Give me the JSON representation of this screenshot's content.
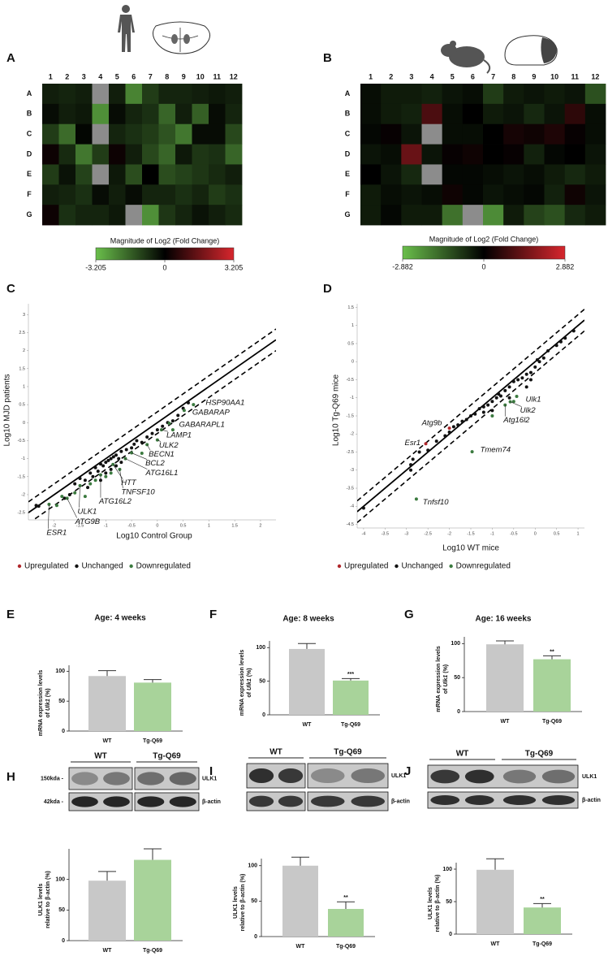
{
  "chart_data": [
    {
      "type": "heatmap",
      "panel": "A",
      "columns": [
        "1",
        "2",
        "3",
        "4",
        "5",
        "6",
        "7",
        "8",
        "9",
        "10",
        "11",
        "12"
      ],
      "rows": [
        "A",
        "B",
        "C",
        "D",
        "E",
        "F",
        "G"
      ],
      "values": [
        [
          -0.5,
          -0.6,
          -0.5,
          null,
          -0.5,
          -2.2,
          -1.0,
          -0.6,
          -0.6,
          -0.5,
          -0.4,
          -0.5
        ],
        [
          -0.2,
          -0.5,
          -0.4,
          -2.4,
          -0.2,
          -0.6,
          -0.8,
          -1.7,
          -0.5,
          -1.6,
          -0.2,
          -0.6
        ],
        [
          -1.0,
          -1.8,
          -0.1,
          null,
          -0.6,
          -0.8,
          -1.0,
          -1.4,
          -2.0,
          -0.2,
          -0.2,
          -1.2
        ],
        [
          0.2,
          -0.7,
          -2.0,
          -1.0,
          0.2,
          -0.5,
          -1.2,
          -1.7,
          -0.4,
          -0.9,
          -0.8,
          -1.7
        ],
        [
          -1.0,
          -0.3,
          -1.1,
          null,
          -0.4,
          -1.3,
          0.0,
          -1.3,
          -1.1,
          -0.9,
          -0.7,
          -0.5
        ],
        [
          -0.5,
          -0.6,
          -0.8,
          -0.2,
          -0.5,
          -0.2,
          -0.6,
          -0.6,
          -0.8,
          -0.6,
          -1.0,
          -0.8
        ],
        [
          0.2,
          -0.8,
          -0.6,
          -0.6,
          -0.4,
          null,
          -2.4,
          -0.9,
          -0.6,
          -0.3,
          -0.5,
          -0.7
        ]
      ],
      "colorbar_title": "Magnitude of Log2 (Fold Change)",
      "clim": [
        -3.205,
        3.205
      ],
      "cticks": [
        -3.205,
        0,
        3.205
      ],
      "colors": [
        "#6abf4b",
        "#000000",
        "#d7262d"
      ],
      "missing_color": "#8c8c8c"
    },
    {
      "type": "heatmap",
      "panel": "B",
      "columns": [
        "1",
        "2",
        "3",
        "4",
        "5",
        "6",
        "7",
        "8",
        "9",
        "10",
        "11",
        "12"
      ],
      "rows": [
        "A",
        "B",
        "C",
        "D",
        "E",
        "F",
        "G"
      ],
      "values": [
        [
          -0.2,
          -0.4,
          -0.4,
          -0.5,
          -0.3,
          -0.2,
          -0.9,
          -0.4,
          -0.3,
          -0.4,
          -0.3,
          -1.2
        ],
        [
          -0.2,
          -0.4,
          -0.5,
          1.0,
          -0.2,
          0.0,
          -0.4,
          -0.3,
          -0.6,
          -0.3,
          0.6,
          -0.2
        ],
        [
          -0.1,
          0.1,
          -0.3,
          null,
          -0.2,
          -0.2,
          0.0,
          0.3,
          0.2,
          0.4,
          0.1,
          -0.2
        ],
        [
          -0.3,
          -0.2,
          1.4,
          -0.3,
          0.1,
          0.2,
          0.0,
          0.1,
          -0.5,
          -0.1,
          0.0,
          -0.3
        ],
        [
          0.0,
          -0.3,
          -0.6,
          null,
          -0.1,
          -0.1,
          -0.2,
          -0.3,
          -0.2,
          -0.4,
          -0.6,
          -0.4
        ],
        [
          -0.4,
          -0.2,
          -0.3,
          -0.2,
          0.2,
          -0.1,
          -0.3,
          -0.2,
          -0.1,
          -0.5,
          0.2,
          -0.3
        ],
        [
          -0.4,
          -0.1,
          -0.4,
          -0.4,
          -1.7,
          null,
          -2.1,
          -0.4,
          -1.0,
          -1.2,
          -0.6,
          -0.4
        ]
      ],
      "colorbar_title": "Magnitude of Log2 (Fold Change)",
      "clim": [
        -2.882,
        2.882
      ],
      "cticks": [
        -2.882,
        0,
        2.882
      ],
      "colors": [
        "#6abf4b",
        "#000000",
        "#d7262d"
      ],
      "missing_color": "#8c8c8c"
    },
    {
      "type": "scatter",
      "panel": "C",
      "xlabel": "Log10 Control Group",
      "ylabel": "Log10  MJD patients",
      "xlim": [
        -2.5,
        2.3
      ],
      "ylim": [
        -2.7,
        3.3
      ],
      "xticks": [
        -2,
        -1.5,
        -1,
        -0.5,
        0,
        0.5,
        1,
        1.5,
        2
      ],
      "yticks": [
        -2.5,
        -2,
        -1.5,
        -1,
        -0.5,
        0,
        0.5,
        1,
        1.5,
        2,
        2.5,
        3
      ],
      "reference_lines": [
        {
          "offset": 0,
          "dash": false
        },
        {
          "offset": 0.3,
          "dash": true
        },
        {
          "offset": -0.3,
          "dash": true
        }
      ],
      "legend": "bottom",
      "series": [
        {
          "name": "Upregulated",
          "color": "#b0282c",
          "x": [],
          "y": [],
          "point_labels": []
        },
        {
          "name": "Unchanged",
          "color": "#111111",
          "x": [
            -2.35,
            -2.3,
            -1.6,
            -1.5,
            -1.3,
            -1.2,
            -1.1,
            -1.05,
            -1.0,
            -0.95,
            -0.9,
            -0.85,
            -0.8,
            -0.75,
            -0.7,
            -0.6,
            -0.5,
            -0.45,
            -0.4,
            -0.3,
            -0.2,
            -0.1,
            0.0,
            0.1,
            0.2,
            0.3,
            0.4,
            0.5,
            0.6,
            -1.25,
            -1.15,
            -1.0,
            -0.9,
            -0.8,
            -1.4,
            -1.35,
            -1.7,
            -1.8,
            -1.1,
            -0.7
          ],
          "y": [
            -2.3,
            -2.32,
            -1.7,
            -1.55,
            -1.4,
            -1.25,
            -1.15,
            -1.2,
            -1.1,
            -1.05,
            -1.0,
            -0.95,
            -0.9,
            -1.0,
            -0.8,
            -0.75,
            -0.7,
            -0.6,
            -0.5,
            -0.55,
            -0.4,
            -0.3,
            -0.2,
            -0.1,
            0.0,
            0.05,
            0.2,
            0.4,
            0.55,
            -1.5,
            -1.35,
            -1.4,
            -1.3,
            -1.2,
            -1.6,
            -1.8,
            -2.0,
            -2.1,
            -1.6,
            -1.1
          ],
          "point_labels": []
        },
        {
          "name": "Downregulated",
          "color": "#3b7a3f",
          "x": [
            0.7,
            0.52,
            0.23,
            0.08,
            0,
            -0.2,
            -0.5,
            -0.62,
            -0.86,
            -0.73,
            -1.1,
            -1.5,
            -1.75,
            -2.1,
            -1.2,
            -1.0,
            -0.9,
            -1.3,
            -1.6,
            -1.4,
            -1.95,
            -1.85,
            0.3,
            -0.3
          ],
          "y": [
            0.5,
            0.34,
            -0.02,
            -0.2,
            -0.48,
            -0.61,
            -0.84,
            -1.0,
            -1.16,
            -1.3,
            -1.45,
            -1.75,
            -2.1,
            -2.27,
            -1.6,
            -1.5,
            -1.4,
            -1.7,
            -1.95,
            -2.05,
            -2.3,
            -2.05,
            -0.2,
            -0.85
          ],
          "point_labels": [
            "HSP90AA1",
            "GABARAP",
            "GABARAPL1",
            "LAMP1",
            "ULK2",
            "BECN1",
            "BCL2",
            "ATG16L1",
            "HTT",
            "TNFSF10",
            "ATG16L2",
            "ULK1",
            "ATG9B",
            "ESR1",
            null,
            null,
            null,
            null,
            null,
            null,
            null,
            null,
            null,
            null
          ]
        }
      ]
    },
    {
      "type": "scatter",
      "panel": "D",
      "xlabel": "Log10 WT mice",
      "ylabel": "Log10 Tg-Q69 mice",
      "xlim": [
        -4.15,
        1.15
      ],
      "ylim": [
        -4.6,
        1.6
      ],
      "xticks": [
        -4,
        -3.5,
        -3,
        -2.5,
        -2,
        -1.5,
        -1,
        -0.5,
        0,
        0.5,
        1
      ],
      "yticks": [
        -4.5,
        -4,
        -3.5,
        -3,
        -2.5,
        -2,
        -1.5,
        -1,
        -0.5,
        0,
        0.5,
        1,
        1.5
      ],
      "reference_lines": [
        {
          "offset": 0,
          "dash": false
        },
        {
          "offset": 0.3,
          "dash": true
        },
        {
          "offset": -0.3,
          "dash": true
        }
      ],
      "legend": "bottom",
      "series": [
        {
          "name": "Upregulated",
          "color": "#b0282c",
          "x": [
            -2.0,
            -2.55
          ],
          "y": [
            -1.84,
            -2.27
          ],
          "point_labels": [
            "Atg9b",
            "Esr1"
          ]
        },
        {
          "name": "Unchanged",
          "color": "#111111",
          "x": [
            -4,
            -2.9,
            -2.85,
            -2.7,
            -2.5,
            -2.3,
            -2.1,
            -2.0,
            -1.9,
            -1.8,
            -1.7,
            -1.6,
            -1.5,
            -1.4,
            -1.3,
            -1.2,
            -1.1,
            -1.0,
            -0.9,
            -0.85,
            -0.8,
            -0.7,
            -0.6,
            -0.5,
            -0.4,
            -0.3,
            -0.2,
            -0.1,
            0.0,
            0.05,
            0.1,
            0.2,
            0.3,
            0.5,
            0.6,
            0.7,
            0.9,
            -1.0,
            -1.2,
            -0.6,
            -0.2,
            -0.1,
            -2.9
          ],
          "y": [
            -4.05,
            -3.0,
            -2.7,
            -2.5,
            -2.45,
            -2.2,
            -2.05,
            -1.95,
            -1.8,
            -1.75,
            -1.65,
            -1.6,
            -1.5,
            -1.45,
            -1.3,
            -1.25,
            -1.2,
            -1.1,
            -1.0,
            -0.9,
            -0.95,
            -0.8,
            -0.7,
            -0.55,
            -0.5,
            -0.45,
            -0.35,
            -0.3,
            -0.15,
            0.05,
            0.0,
            0.1,
            0.3,
            0.45,
            0.55,
            0.65,
            0.85,
            -1.35,
            -1.4,
            -1.0,
            -0.7,
            -0.5,
            -2.85
          ],
          "point_labels": []
        },
        {
          "name": "Downregulated",
          "color": "#3b7a3f",
          "x": [
            -0.43,
            -0.58,
            -0.7,
            -1.47,
            -2.77,
            -0.5,
            -1.0
          ],
          "y": [
            -0.96,
            -1.11,
            -1.2,
            -2.49,
            -3.8,
            -1.1,
            -1.5
          ],
          "point_labels": [
            "Ulk1",
            "Ulk2",
            "Atg16l2",
            "Tmem74",
            "Tnfsf10",
            null,
            null
          ]
        }
      ]
    },
    {
      "type": "bar",
      "panel": "E",
      "title": "Age: 4 weeks",
      "ylabel": [
        "mRNA expression levels",
        [
          "of",
          "Ulk1",
          "(%)"
        ]
      ],
      "categories": [
        "WT",
        "Tg-Q69"
      ],
      "values": [
        92,
        81
      ],
      "errors": [
        9,
        5
      ],
      "annotations": [
        null,
        null
      ],
      "colors": [
        "#c8c8c8",
        "#a8d39a"
      ],
      "ylim": [
        0,
        110
      ],
      "yticks": [
        0,
        50,
        100
      ]
    },
    {
      "type": "bar",
      "panel": "F",
      "title": "Age: 8 weeks",
      "ylabel": [
        "mRNA expression levels",
        [
          "of",
          "Ulk1",
          "(%)"
        ]
      ],
      "categories": [
        "WT",
        "Tg-Q69"
      ],
      "values": [
        98,
        51
      ],
      "errors": [
        8,
        3
      ],
      "annotations": [
        null,
        "***"
      ],
      "colors": [
        "#c8c8c8",
        "#a8d39a"
      ],
      "ylim": [
        0,
        110
      ],
      "yticks": [
        0,
        50,
        100
      ]
    },
    {
      "type": "bar",
      "panel": "G",
      "title": "Age: 16 weeks",
      "ylabel": [
        "mRNA expression levels",
        [
          "of",
          "Ulk1",
          "(%)"
        ]
      ],
      "categories": [
        "WT",
        "Tg-Q69"
      ],
      "values": [
        99,
        77
      ],
      "errors": [
        5,
        5
      ],
      "annotations": [
        null,
        "**"
      ],
      "colors": [
        "#c8c8c8",
        "#a8d39a"
      ],
      "ylim": [
        0,
        110
      ],
      "yticks": [
        0,
        50,
        100
      ]
    },
    {
      "type": "bar",
      "panel": "H",
      "ylabel": [
        "ULK1 levels",
        "relative to β-actin (%)"
      ],
      "categories": [
        "WT",
        "Tg-Q69"
      ],
      "values": [
        98,
        132
      ],
      "errors": [
        15,
        18
      ],
      "annotations": [
        null,
        null
      ],
      "colors": [
        "#c8c8c8",
        "#a8d39a"
      ],
      "ylim": [
        0,
        150
      ],
      "yticks": [
        0,
        50,
        100
      ]
    },
    {
      "type": "bar",
      "panel": "I",
      "ylabel": [
        "ULK1 levels",
        "relative to β-actin (%)"
      ],
      "categories": [
        "WT",
        "Tg-Q69"
      ],
      "values": [
        100,
        39
      ],
      "errors": [
        12,
        10
      ],
      "annotations": [
        null,
        "**"
      ],
      "colors": [
        "#c8c8c8",
        "#a8d39a"
      ],
      "ylim": [
        0,
        110
      ],
      "yticks": [
        0,
        50,
        100
      ]
    },
    {
      "type": "bar",
      "panel": "J",
      "ylabel": [
        "ULK1 levels",
        "relative to β-actin (%)"
      ],
      "categories": [
        "WT",
        "Tg-Q69"
      ],
      "values": [
        99,
        41
      ],
      "errors": [
        17,
        6
      ],
      "annotations": [
        null,
        "**"
      ],
      "colors": [
        "#c8c8c8",
        "#a8d39a"
      ],
      "ylim": [
        0,
        110
      ],
      "yticks": [
        0,
        50,
        100
      ]
    }
  ],
  "blots": [
    {
      "groups": [
        "WT",
        "Tg-Q69"
      ],
      "markers": [
        "150kda -",
        "42kda -"
      ],
      "bands": [
        "ULK1",
        "β-actin"
      ]
    },
    {
      "groups": [
        "WT",
        "Tg-Q69"
      ],
      "bands": [
        "ULK1",
        "β-actin"
      ]
    },
    {
      "groups": [
        "WT",
        "Tg-Q69"
      ],
      "bands": [
        "ULK1",
        "β-actin"
      ]
    }
  ]
}
